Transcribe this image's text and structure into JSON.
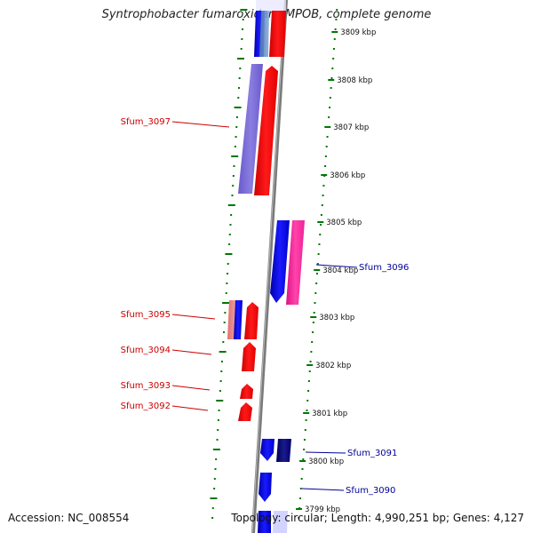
{
  "header": {
    "title": "Syntrophobacter fumaroxidans MPOB, complete genome"
  },
  "footer": {
    "accession": "Accession: NC_008554",
    "topology": "Topology: circular; Length: 4,990,251 bp; Genes: 4,127"
  },
  "scale": {
    "ticks": [
      "3809 kbp",
      "3808 kbp",
      "3807 kbp",
      "3806 kbp",
      "3805 kbp",
      "3804 kbp",
      "3803 kbp",
      "3802 kbp",
      "3801 kbp",
      "3800 kbp",
      "3799 kbp"
    ]
  },
  "colors": {
    "forward_strand": "#ff0000",
    "reverse_strand": "#0000ee",
    "left_gene_label": "#cc0000",
    "right_gene_label": "#000099",
    "dotted_track": "#007700",
    "backbone": "#808080"
  },
  "genes_left": [
    {
      "name": "Sfum_3097"
    },
    {
      "name": "Sfum_3095"
    },
    {
      "name": "Sfum_3094"
    },
    {
      "name": "Sfum_3093"
    },
    {
      "name": "Sfum_3092"
    }
  ],
  "genes_right": [
    {
      "name": "Sfum_3096"
    },
    {
      "name": "Sfum_3091"
    },
    {
      "name": "Sfum_3090"
    }
  ]
}
